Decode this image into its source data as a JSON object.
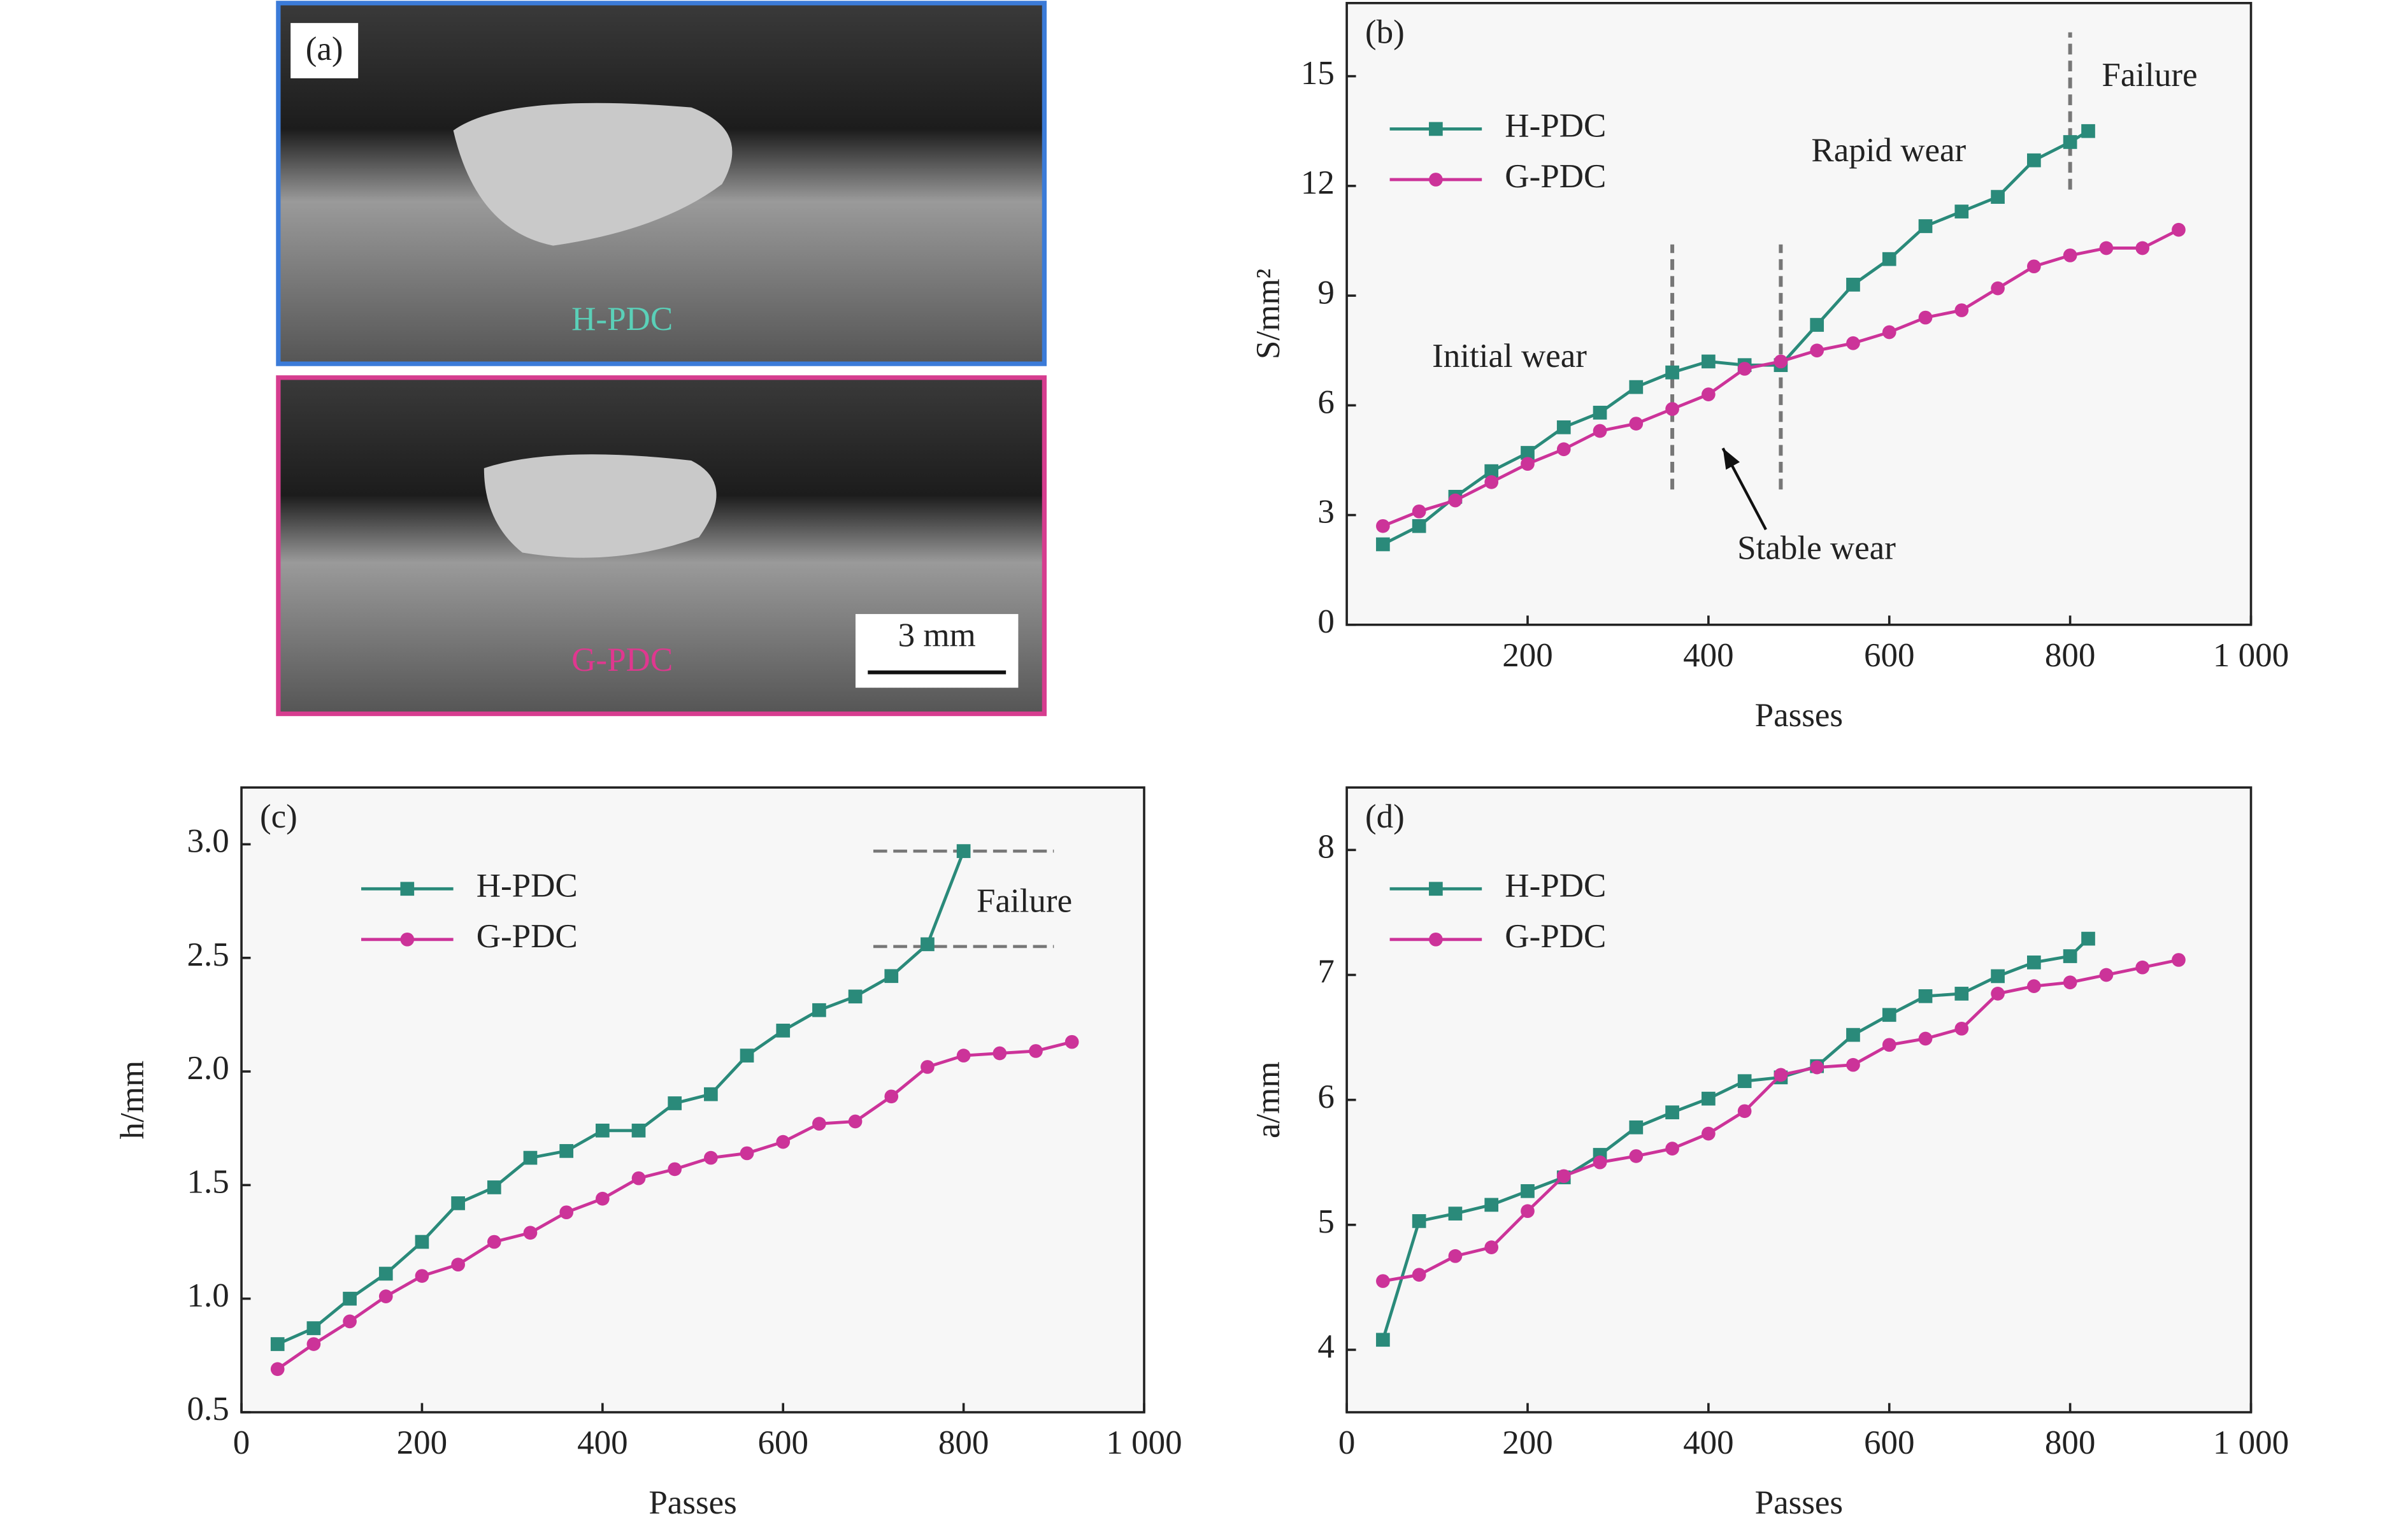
{
  "photo": {
    "label": "(a)",
    "top_label": "H-PDC",
    "bottom_label": "G-PDC",
    "scale_bar": "3 mm"
  },
  "chart_data": [
    {
      "type": "line",
      "panel": "(b)",
      "xlabel": "Passes",
      "ylabel": "S/mm²",
      "xlim": [
        0,
        1000
      ],
      "xticks": [
        200,
        400,
        600,
        800,
        {
          "value": 1000,
          "label": "1 000"
        }
      ],
      "ylim": [
        0,
        17
      ],
      "yticks": [
        0,
        3,
        6,
        9,
        12,
        15
      ],
      "legend": "upper left",
      "series": [
        {
          "name": "H-PDC",
          "color": "#2a8a7a",
          "marker": "square",
          "x": [
            40,
            80,
            120,
            160,
            200,
            240,
            280,
            320,
            360,
            400,
            440,
            480,
            520,
            560,
            600,
            640,
            680,
            720,
            760,
            800,
            820
          ],
          "values": [
            2.2,
            2.7,
            3.5,
            4.2,
            4.7,
            5.4,
            5.8,
            6.5,
            6.9,
            7.2,
            7.1,
            7.1,
            8.2,
            9.3,
            10.0,
            10.9,
            11.3,
            11.7,
            12.7,
            13.2,
            13.5
          ]
        },
        {
          "name": "G-PDC",
          "color": "#cc3399",
          "marker": "circle",
          "x": [
            40,
            80,
            120,
            160,
            200,
            240,
            280,
            320,
            360,
            400,
            440,
            480,
            520,
            560,
            600,
            640,
            680,
            720,
            760,
            800,
            840,
            880,
            920
          ],
          "values": [
            2.7,
            3.1,
            3.4,
            3.9,
            4.4,
            4.8,
            5.3,
            5.5,
            5.9,
            6.3,
            7.0,
            7.2,
            7.5,
            7.7,
            8.0,
            8.4,
            8.6,
            9.2,
            9.8,
            10.1,
            10.3,
            10.3,
            10.8
          ]
        }
      ],
      "vlines": [
        {
          "x": 360,
          "y": [
            3.7,
            10.4
          ]
        },
        {
          "x": 480,
          "y": [
            3.7,
            10.4
          ]
        },
        {
          "x": 800,
          "y": [
            11.9,
            16.2
          ]
        }
      ],
      "annotations": [
        "Initial wear",
        "Stable wear",
        "Rapid wear",
        "Failure"
      ]
    },
    {
      "type": "line",
      "panel": "(c)",
      "xlabel": "Passes",
      "ylabel": "h/mm",
      "xlim": [
        0,
        1000
      ],
      "xticks": [
        0,
        200,
        400,
        600,
        800,
        {
          "value": 1000,
          "label": "1 000"
        }
      ],
      "ylim": [
        0.5,
        3.25
      ],
      "yticks": [
        0.5,
        {
          "value": 1,
          "label": "1.0"
        },
        1.5,
        {
          "value": 2,
          "label": "2.0"
        },
        2.5,
        {
          "value": 3,
          "label": "3.0"
        }
      ],
      "legend": "upper left",
      "series": [
        {
          "name": "H-PDC",
          "color": "#2a8a7a",
          "marker": "square",
          "x": [
            40,
            80,
            120,
            160,
            200,
            240,
            280,
            320,
            360,
            400,
            440,
            480,
            520,
            560,
            600,
            640,
            680,
            720,
            760,
            800
          ],
          "values": [
            0.8,
            0.87,
            1.0,
            1.11,
            1.25,
            1.42,
            1.49,
            1.62,
            1.65,
            1.74,
            1.74,
            1.86,
            1.9,
            2.07,
            2.18,
            2.27,
            2.33,
            2.42,
            2.56,
            2.97
          ]
        },
        {
          "name": "G-PDC",
          "color": "#cc3399",
          "marker": "circle",
          "x": [
            40,
            80,
            120,
            160,
            200,
            240,
            280,
            320,
            360,
            400,
            440,
            480,
            520,
            560,
            600,
            640,
            680,
            720,
            760,
            800,
            840,
            880,
            920
          ],
          "values": [
            0.69,
            0.8,
            0.9,
            1.01,
            1.1,
            1.15,
            1.25,
            1.29,
            1.38,
            1.44,
            1.53,
            1.57,
            1.62,
            1.64,
            1.69,
            1.77,
            1.78,
            1.89,
            2.02,
            2.07,
            2.08,
            2.09,
            2.13
          ]
        }
      ],
      "hlines": [
        {
          "y": 2.97,
          "x": [
            700,
            900
          ]
        },
        {
          "y": 2.55,
          "x": [
            700,
            900
          ]
        }
      ],
      "annotations": [
        "Failure"
      ]
    },
    {
      "type": "line",
      "panel": "(d)",
      "xlabel": "Passes",
      "ylabel": "a/mm",
      "xlim": [
        0,
        1000
      ],
      "xticks": [
        0,
        200,
        400,
        600,
        800,
        {
          "value": 1000,
          "label": "1 000"
        }
      ],
      "ylim": [
        3.5,
        8.5
      ],
      "yticks": [
        4,
        5,
        6,
        7,
        8
      ],
      "legend": "upper left",
      "series": [
        {
          "name": "H-PDC",
          "color": "#2a8a7a",
          "marker": "square",
          "x": [
            40,
            80,
            120,
            160,
            200,
            240,
            280,
            320,
            360,
            400,
            440,
            480,
            520,
            560,
            600,
            640,
            680,
            720,
            760,
            800,
            820
          ],
          "values": [
            4.08,
            5.03,
            5.09,
            5.16,
            5.27,
            5.38,
            5.56,
            5.78,
            5.9,
            6.01,
            6.15,
            6.18,
            6.27,
            6.52,
            6.68,
            6.83,
            6.85,
            6.99,
            7.1,
            7.15,
            7.29
          ]
        },
        {
          "name": "G-PDC",
          "color": "#cc3399",
          "marker": "circle",
          "x": [
            40,
            80,
            120,
            160,
            200,
            240,
            280,
            320,
            360,
            400,
            440,
            480,
            520,
            560,
            600,
            640,
            680,
            720,
            760,
            800,
            840,
            880,
            920
          ],
          "values": [
            4.55,
            4.6,
            4.75,
            4.82,
            5.11,
            5.39,
            5.5,
            5.55,
            5.61,
            5.73,
            5.91,
            6.2,
            6.26,
            6.28,
            6.44,
            6.49,
            6.57,
            6.85,
            6.91,
            6.94,
            7.0,
            7.06,
            7.12
          ]
        }
      ],
      "annotations": []
    }
  ]
}
